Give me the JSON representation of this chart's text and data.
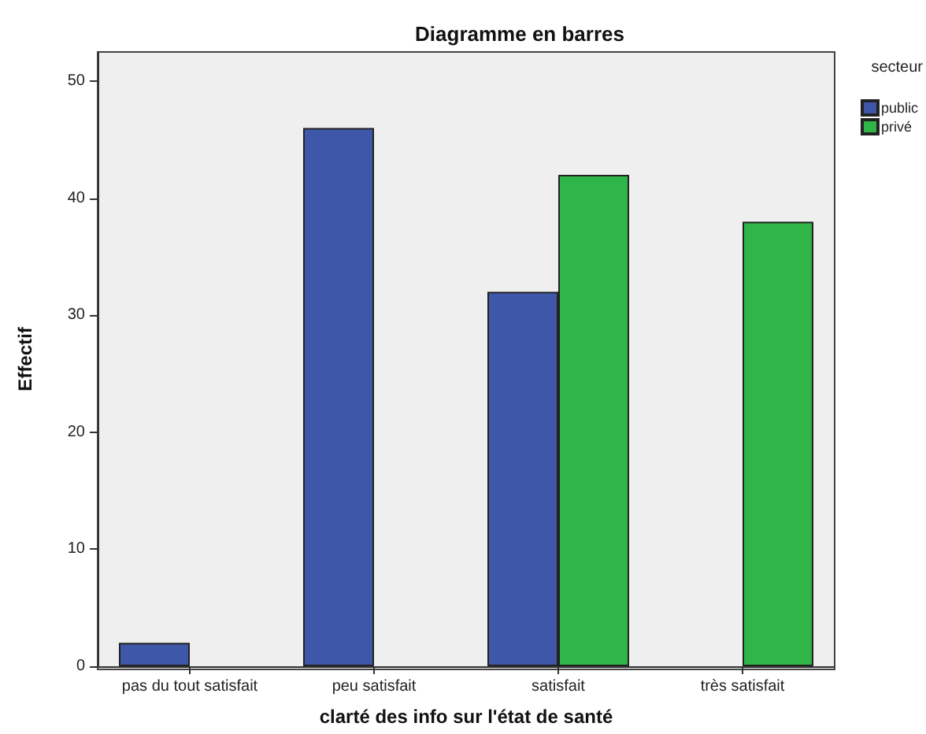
{
  "chart_data": {
    "type": "bar",
    "title": "Diagramme en barres",
    "xlabel": "clarté des info sur l'état de santé",
    "ylabel": "Effectif",
    "legend_title": "secteur",
    "categories": [
      "pas du tout satisfait",
      "peu satisfait",
      "satisfait",
      "très satisfait"
    ],
    "series": [
      {
        "name": "public",
        "color": "#3f57a8",
        "values": [
          2,
          46,
          32,
          null
        ]
      },
      {
        "name": "privé",
        "color": "#2fb548",
        "values": [
          null,
          null,
          42,
          38
        ]
      }
    ],
    "ylim": [
      0,
      52.5
    ],
    "yticks": [
      0,
      10,
      20,
      30,
      40,
      50
    ],
    "grid": false,
    "legend": "top right"
  }
}
